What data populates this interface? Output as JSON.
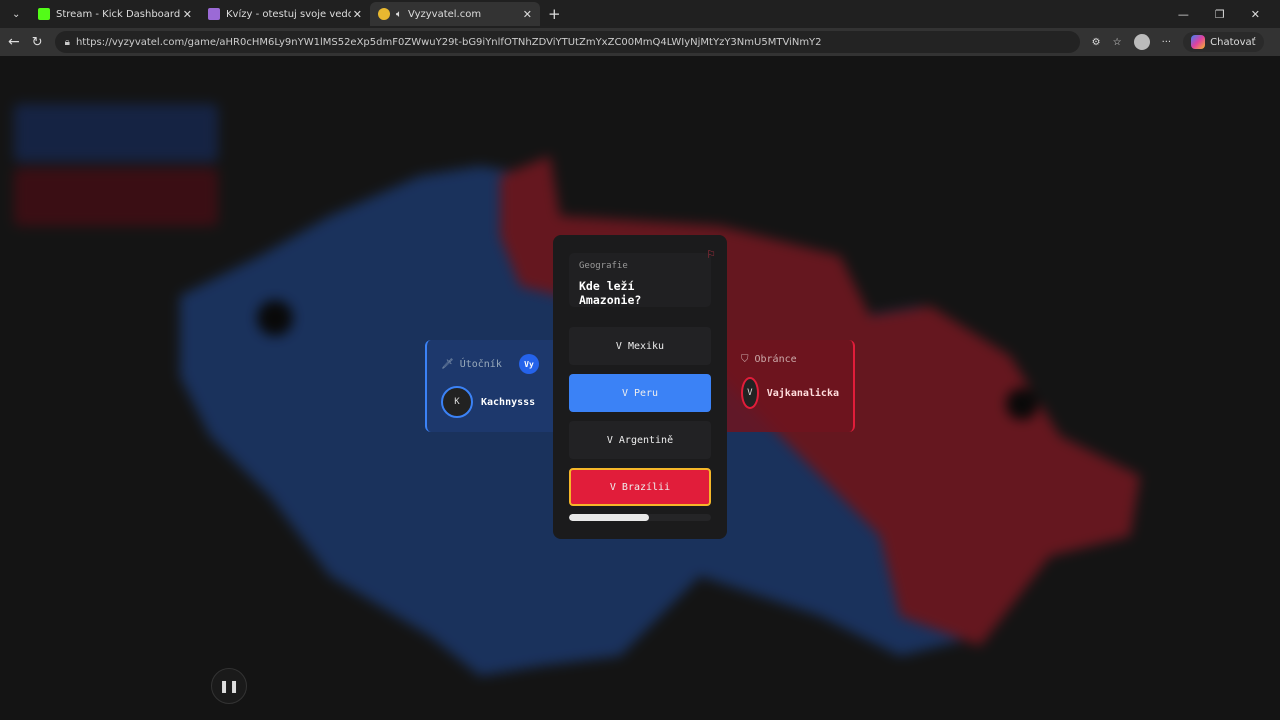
{
  "browser": {
    "tabs": [
      {
        "title": "Stream - Kick Dashboard",
        "color": "#53fc18"
      },
      {
        "title": "Kvízy - otestuj svoje vedomosti! - ",
        "color": "#9b6ad6"
      },
      {
        "title": "Vyzyvatel.com",
        "color": "#e8b830",
        "active": true
      }
    ],
    "url": "https://vyzyvatel.com/game/aHR0cHM6Ly9nYW1lMS52eXp5dmF0ZWwuY29t-bG9iYnlfOTNhZDViYTUtZmYxZC00MmQ4LWIyNjMtYzY3NmU5MTViNmY2",
    "chat_label": "Chatovať"
  },
  "question": {
    "category": "Geografie",
    "text": "Kde leží Amazonie?",
    "answers": [
      {
        "label": "V Mexiku",
        "state": "default"
      },
      {
        "label": "V Peru",
        "state": "selected-blue"
      },
      {
        "label": "V Argentině",
        "state": "default"
      },
      {
        "label": "V Brazílii",
        "state": "selected-red-correct"
      }
    ],
    "timer_progress_percent": 56
  },
  "attacker": {
    "role": "Útočník",
    "you_badge": "Vy",
    "initial": "K",
    "name": "Kachnysss",
    "color": "#3b82f6"
  },
  "defender": {
    "role": "Obránce",
    "initial": "V",
    "name": "Vajkanalicka",
    "color": "#e11d3a"
  }
}
